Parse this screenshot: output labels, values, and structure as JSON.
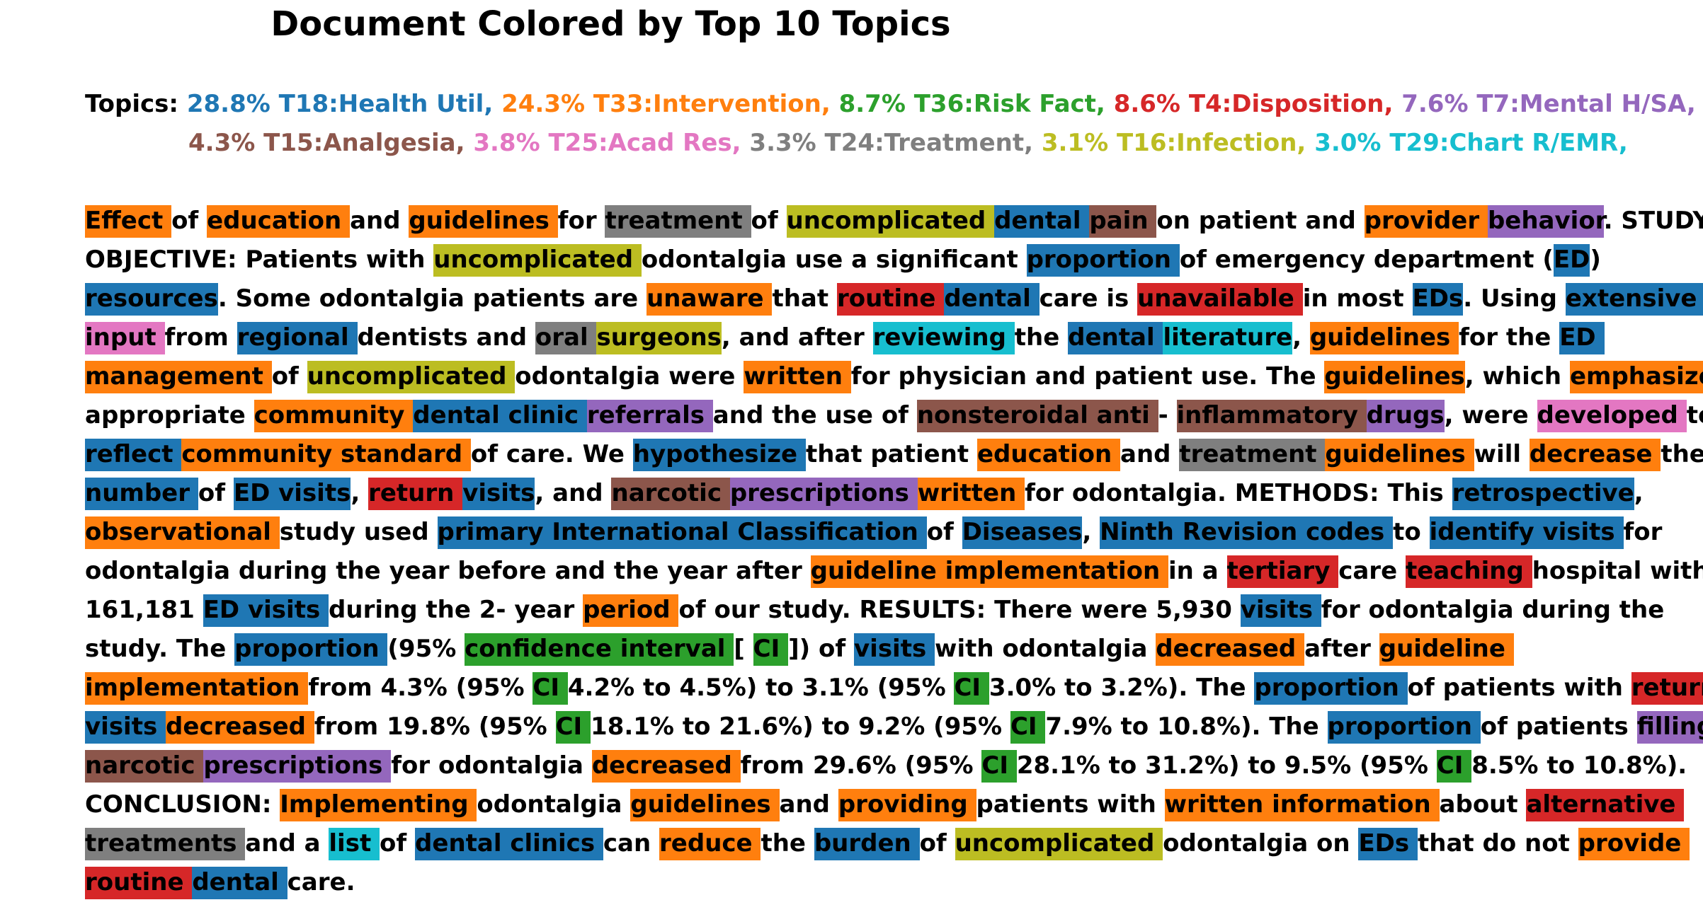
{
  "title": "Document Colored by Top 10 Topics",
  "topics_prefix": "Topics:",
  "colors": {
    "T18": "#1f77b4",
    "T33": "#ff7f0e",
    "T36": "#2ca02c",
    "T4": "#d62728",
    "T7": "#9467bd",
    "T15": "#8c564b",
    "T25": "#e377c2",
    "T24": "#7f7f7f",
    "T16": "#bcbd22",
    "T29": "#17becf"
  },
  "topic_rows": [
    [
      {
        "text": "28.8% T18:Health Util,",
        "topic": "T18"
      },
      {
        "text": "24.3% T33:Intervention,",
        "topic": "T33"
      },
      {
        "text": "8.7% T36:Risk Fact,",
        "topic": "T36"
      },
      {
        "text": "8.6% T4:Disposition,",
        "topic": "T4"
      },
      {
        "text": "7.6% T7:Mental H/SA,",
        "topic": "T7"
      }
    ],
    [
      {
        "text": "4.3% T15:Analgesia,",
        "topic": "T15"
      },
      {
        "text": "3.8% T25:Acad Res,",
        "topic": "T25"
      },
      {
        "text": "3.3% T24:Treatment,",
        "topic": "T24"
      },
      {
        "text": "3.1% T16:Infection,",
        "topic": "T16"
      },
      {
        "text": "3.0% T29:Chart R/EMR,",
        "topic": "T29"
      }
    ]
  ],
  "lines": [
    [
      [
        "Effect ",
        "T33"
      ],
      [
        "of ",
        ""
      ],
      [
        "education ",
        "T33"
      ],
      [
        "and ",
        ""
      ],
      [
        "guidelines ",
        "T33"
      ],
      [
        "for ",
        ""
      ],
      [
        "treatment ",
        "T24"
      ],
      [
        "of ",
        ""
      ],
      [
        "uncomplicated ",
        "T16"
      ],
      [
        "dental ",
        "T18"
      ],
      [
        "pain ",
        "T15"
      ],
      [
        "on patient and ",
        ""
      ],
      [
        "provider ",
        "T33"
      ],
      [
        "behavior",
        "T7"
      ],
      [
        ". STUDY",
        ""
      ]
    ],
    [
      [
        "OBJECTIVE: Patients with ",
        ""
      ],
      [
        "uncomplicated ",
        "T16"
      ],
      [
        "odontalgia use a significant ",
        ""
      ],
      [
        "proportion ",
        "T18"
      ],
      [
        "of emergency department (",
        ""
      ],
      [
        "ED",
        "T18"
      ],
      [
        ")",
        ""
      ]
    ],
    [
      [
        "resources",
        "T18"
      ],
      [
        ". Some odontalgia patients are ",
        ""
      ],
      [
        "unaware ",
        "T33"
      ],
      [
        "that ",
        ""
      ],
      [
        "routine ",
        "T4"
      ],
      [
        "dental ",
        "T18"
      ],
      [
        "care is ",
        ""
      ],
      [
        "unavailable ",
        "T4"
      ],
      [
        "in most ",
        ""
      ],
      [
        "EDs",
        "T18"
      ],
      [
        ". Using ",
        ""
      ],
      [
        "extensive ",
        "T18"
      ]
    ],
    [
      [
        "input ",
        "T25"
      ],
      [
        "from ",
        ""
      ],
      [
        "regional ",
        "T18"
      ],
      [
        "dentists and ",
        ""
      ],
      [
        "oral ",
        "T24"
      ],
      [
        "surgeons",
        "T16"
      ],
      [
        ", and after ",
        ""
      ],
      [
        "reviewing ",
        "T29"
      ],
      [
        "the ",
        ""
      ],
      [
        "dental ",
        "T18"
      ],
      [
        "literature",
        "T29"
      ],
      [
        ", ",
        ""
      ],
      [
        "guidelines ",
        "T33"
      ],
      [
        "for the ",
        ""
      ],
      [
        "ED ",
        "T18"
      ]
    ],
    [
      [
        "management ",
        "T33"
      ],
      [
        "of ",
        ""
      ],
      [
        "uncomplicated ",
        "T16"
      ],
      [
        "odontalgia were ",
        ""
      ],
      [
        "written ",
        "T33"
      ],
      [
        "for physician and patient use. The ",
        ""
      ],
      [
        "guidelines",
        "T33"
      ],
      [
        ", which ",
        ""
      ],
      [
        "emphasize ",
        "T33"
      ]
    ],
    [
      [
        "appropriate ",
        ""
      ],
      [
        "community ",
        "T33"
      ],
      [
        "dental clinic ",
        "T18"
      ],
      [
        "referrals ",
        "T7"
      ],
      [
        "and the use of ",
        ""
      ],
      [
        "nonsteroidal anti ",
        "T15"
      ],
      [
        "- ",
        ""
      ],
      [
        "inflammatory ",
        "T15"
      ],
      [
        "drugs",
        "T7"
      ],
      [
        ", were ",
        ""
      ],
      [
        "developed ",
        "T25"
      ],
      [
        "to",
        ""
      ]
    ],
    [
      [
        "reflect ",
        "T18"
      ],
      [
        "community standard ",
        "T33"
      ],
      [
        "of care. We ",
        ""
      ],
      [
        "hypothesize ",
        "T18"
      ],
      [
        "that patient ",
        ""
      ],
      [
        "education ",
        "T33"
      ],
      [
        "and ",
        ""
      ],
      [
        "treatment ",
        "T24"
      ],
      [
        "guidelines ",
        "T33"
      ],
      [
        "will ",
        ""
      ],
      [
        "decrease ",
        "T33"
      ],
      [
        "the",
        ""
      ]
    ],
    [
      [
        "number ",
        "T18"
      ],
      [
        "of ",
        ""
      ],
      [
        "ED visits",
        "T18"
      ],
      [
        ", ",
        ""
      ],
      [
        "return ",
        "T4"
      ],
      [
        "visits",
        "T18"
      ],
      [
        ", and ",
        ""
      ],
      [
        "narcotic ",
        "T15"
      ],
      [
        "prescriptions ",
        "T7"
      ],
      [
        "written ",
        "T33"
      ],
      [
        "for odontalgia. METHODS: This ",
        ""
      ],
      [
        "retrospective",
        "T18"
      ],
      [
        ",",
        ""
      ]
    ],
    [
      [
        "observational ",
        "T33"
      ],
      [
        "study used ",
        ""
      ],
      [
        "primary International Classification ",
        "T18"
      ],
      [
        "of ",
        ""
      ],
      [
        "Diseases",
        "T18"
      ],
      [
        ", ",
        ""
      ],
      [
        "Ninth Revision codes ",
        "T18"
      ],
      [
        "to ",
        ""
      ],
      [
        "identify visits ",
        "T18"
      ],
      [
        "for",
        ""
      ]
    ],
    [
      [
        "odontalgia during the year before and the year after ",
        ""
      ],
      [
        "guideline implementation ",
        "T33"
      ],
      [
        "in a ",
        ""
      ],
      [
        "tertiary ",
        "T4"
      ],
      [
        "care ",
        ""
      ],
      [
        "teaching ",
        "T4"
      ],
      [
        "hospital with",
        ""
      ]
    ],
    [
      [
        "161,181 ",
        ""
      ],
      [
        "ED visits ",
        "T18"
      ],
      [
        "during the 2- year ",
        ""
      ],
      [
        "period ",
        "T33"
      ],
      [
        "of our study. RESULTS: There were 5,930 ",
        ""
      ],
      [
        "visits ",
        "T18"
      ],
      [
        "for odontalgia during the",
        ""
      ]
    ],
    [
      [
        "study. The ",
        ""
      ],
      [
        "proportion ",
        "T18"
      ],
      [
        "(95% ",
        ""
      ],
      [
        "confidence interval ",
        "T36"
      ],
      [
        "[ ",
        ""
      ],
      [
        "CI ",
        "T36"
      ],
      [
        "]) of ",
        ""
      ],
      [
        "visits ",
        "T18"
      ],
      [
        "with odontalgia ",
        ""
      ],
      [
        "decreased ",
        "T33"
      ],
      [
        "after ",
        ""
      ],
      [
        "guideline ",
        "T33"
      ]
    ],
    [
      [
        "implementation ",
        "T33"
      ],
      [
        "from 4.3% (95% ",
        ""
      ],
      [
        "CI ",
        "T36"
      ],
      [
        "4.2% to 4.5%) to 3.1% (95% ",
        ""
      ],
      [
        "CI ",
        "T36"
      ],
      [
        "3.0% to 3.2%). The ",
        ""
      ],
      [
        "proportion ",
        "T18"
      ],
      [
        "of patients with ",
        ""
      ],
      [
        "return ",
        "T4"
      ]
    ],
    [
      [
        "visits ",
        "T18"
      ],
      [
        "decreased ",
        "T33"
      ],
      [
        "from 19.8% (95% ",
        ""
      ],
      [
        "CI ",
        "T36"
      ],
      [
        "18.1% to 21.6%) to 9.2% (95% ",
        ""
      ],
      [
        "CI ",
        "T36"
      ],
      [
        "7.9% to 10.8%). The ",
        ""
      ],
      [
        "proportion ",
        "T18"
      ],
      [
        "of patients ",
        ""
      ],
      [
        "filling ",
        "T7"
      ]
    ],
    [
      [
        "narcotic ",
        "T15"
      ],
      [
        "prescriptions ",
        "T7"
      ],
      [
        "for odontalgia ",
        ""
      ],
      [
        "decreased ",
        "T33"
      ],
      [
        "from 29.6% (95% ",
        ""
      ],
      [
        "CI ",
        "T36"
      ],
      [
        "28.1% to 31.2%) to 9.5% (95% ",
        ""
      ],
      [
        "CI ",
        "T36"
      ],
      [
        "8.5% to 10.8%).",
        ""
      ]
    ],
    [
      [
        "CONCLUSION: ",
        ""
      ],
      [
        "Implementing ",
        "T33"
      ],
      [
        "odontalgia ",
        ""
      ],
      [
        "guidelines ",
        "T33"
      ],
      [
        "and ",
        ""
      ],
      [
        "providing ",
        "T33"
      ],
      [
        "patients with ",
        ""
      ],
      [
        "written information ",
        "T33"
      ],
      [
        "about ",
        ""
      ],
      [
        "alternative ",
        "T4"
      ]
    ],
    [
      [
        "treatments ",
        "T24"
      ],
      [
        "and a ",
        ""
      ],
      [
        "list ",
        "T29"
      ],
      [
        "of ",
        ""
      ],
      [
        "dental clinics ",
        "T18"
      ],
      [
        "can ",
        ""
      ],
      [
        "reduce ",
        "T33"
      ],
      [
        "the ",
        ""
      ],
      [
        "burden ",
        "T18"
      ],
      [
        "of ",
        ""
      ],
      [
        "uncomplicated ",
        "T16"
      ],
      [
        "odontalgia on ",
        ""
      ],
      [
        "EDs ",
        "T18"
      ],
      [
        "that do not ",
        ""
      ],
      [
        "provide ",
        "T33"
      ]
    ],
    [
      [
        "routine ",
        "T4"
      ],
      [
        "dental ",
        "T18"
      ],
      [
        "care.",
        ""
      ]
    ]
  ]
}
